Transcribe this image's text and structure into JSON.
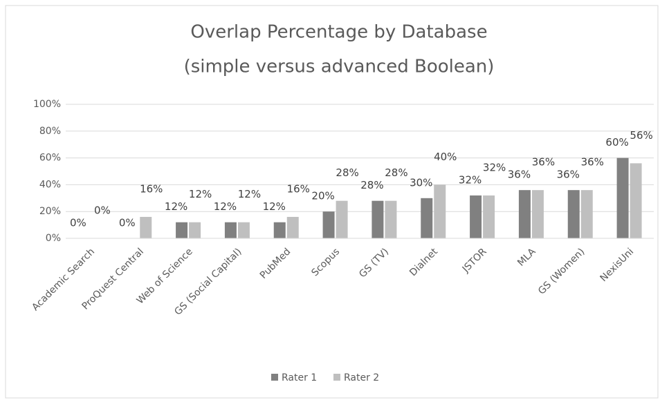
{
  "chart_data": {
    "type": "bar",
    "title": "Overlap Percentage by Database",
    "subtitle": "(simple versus advanced Boolean)",
    "categories": [
      "Academic Search",
      "ProQuest Central",
      "Web of Science",
      "GS (Social Capital)",
      "PubMed",
      "Scopus",
      "GS (TV)",
      "Dialnet",
      "JSTOR",
      "MLA",
      "GS (Women)",
      "NexisUni"
    ],
    "series": [
      {
        "name": "Rater 1",
        "color": "#808080",
        "values": [
          0,
          0,
          12,
          12,
          12,
          20,
          28,
          30,
          32,
          36,
          36,
          60
        ],
        "value_labels": [
          "0%",
          "0%",
          "12%",
          "12%",
          "12%",
          "20%",
          "28%",
          "30%",
          "32%",
          "36%",
          "36%",
          "60%"
        ]
      },
      {
        "name": "Rater 2",
        "color": "#bfbfbf",
        "values": [
          0,
          16,
          12,
          12,
          16,
          28,
          28,
          40,
          32,
          36,
          36,
          56
        ],
        "value_labels": [
          "0%",
          "16%",
          "12%",
          "12%",
          "16%",
          "28%",
          "28%",
          "40%",
          "32%",
          "36%",
          "36%",
          "56%"
        ]
      }
    ],
    "ylim": [
      0,
      100
    ],
    "yticks": [
      {
        "value": 0,
        "label": "0%"
      },
      {
        "value": 20,
        "label": "20%"
      },
      {
        "value": 40,
        "label": "40%"
      },
      {
        "value": 60,
        "label": "60%"
      },
      {
        "value": 80,
        "label": "80%"
      },
      {
        "value": 100,
        "label": "100%"
      }
    ],
    "grid": true,
    "legend": "bottom"
  }
}
